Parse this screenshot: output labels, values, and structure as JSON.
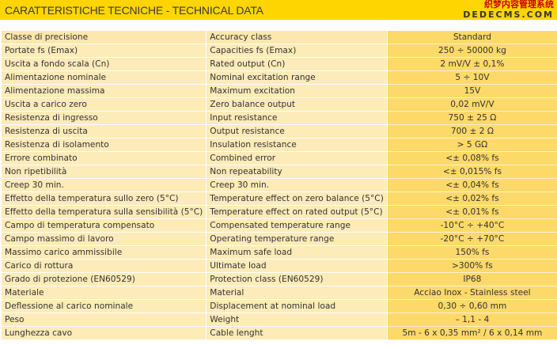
{
  "title": "CARATTERISTICHE TECNICHE - TECHNICAL DATA",
  "rows": [
    {
      "it": "Classe di precisione",
      "en": "Accuracy class",
      "value": "Standard"
    },
    {
      "it": "Portate fs (Emax)",
      "en": "Capacities fs (Emax)",
      "value": "250 ÷ 50000 kg"
    },
    {
      "it": "Uscita a fondo scala (Cn)",
      "en": "Rated output (Cn)",
      "value": "2 mV/V ± 0,1%"
    },
    {
      "it": "Alimentazione nominale",
      "en": "Nominal excitation range",
      "value": "5 ÷ 10V"
    },
    {
      "it": "Alimentazione massima",
      "en": "Maximum excitation",
      "value": "15V"
    },
    {
      "it": "Uscita a carico zero",
      "en": "Zero balance output",
      "value": "0,02 mV/V"
    },
    {
      "it": "Resistenza di ingresso",
      "en": "Input resistance",
      "value": "750 ± 25 Ω"
    },
    {
      "it": "Resistenza di uscita",
      "en": "Output resistance",
      "value": "700 ± 2 Ω"
    },
    {
      "it": "Resistenza di isolamento",
      "en": "Insulation resistance",
      "value": "> 5 GΩ"
    },
    {
      "it": "Errore combinato",
      "en": "Combined error",
      "value": "<± 0,08% fs"
    },
    {
      "it": "Non ripetibilità",
      "en": "Non repeatability",
      "value": "<± 0,015% fs"
    },
    {
      "it": "Creep 30 min.",
      "en": "Creep 30 min.",
      "value": "<± 0,04% fs"
    },
    {
      "it": "Effetto della temperatura sullo zero (5°C)",
      "en": "Temperature effect on zero balance (5°C)",
      "value": "<± 0,02% fs"
    },
    {
      "it": "Effetto della temperatura sulla sensibilità (5°C)",
      "en": "Temperature effect on rated output (5°C)",
      "value": "<± 0,01% fs"
    },
    {
      "it": "Campo di temperatura compensato",
      "en": "Compensated temperature range",
      "value": "-10°C ÷ +40°C"
    },
    {
      "it": "Campo massimo di lavoro",
      "en": "Operating temperature range",
      "value": "-20°C ÷ +70°C"
    },
    {
      "it": "Massimo carico ammissibile",
      "en": "Maximum safe load",
      "value": "150% fs"
    },
    {
      "it": "Carico di rottura",
      "en": "Ultimate load",
      "value": ">300% fs"
    },
    {
      "it": "Grado di protezione (EN60529)",
      "en": "Protection class (EN60529)",
      "value": "IP68"
    },
    {
      "it": "Materiale",
      "en": "Material",
      "value": "Acciao Inox - Stainless steel"
    },
    {
      "it": "Deflessione al carico nominale",
      "en": "Displacement at nominal load",
      "value": "0,30 ÷ 0,60 mm"
    },
    {
      "it": "Peso",
      "en": "Weight",
      "value": "– 1,1 - 4"
    },
    {
      "it": "Lunghezza cavo",
      "en": "Cable lenght",
      "value": "5m - 6 x 0,35 mm² / 6 x 0,14 mm"
    }
  ],
  "watermark": {
    "line1": "织梦内容管理系统",
    "line2": "DEDECMS.COM"
  }
}
